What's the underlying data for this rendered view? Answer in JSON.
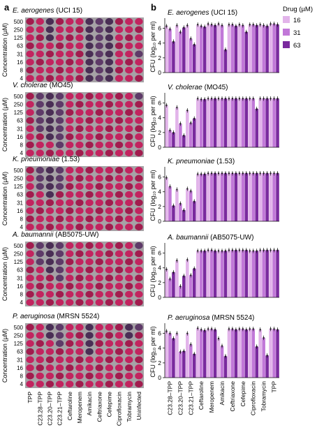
{
  "figure": {
    "panel_a_label": "a",
    "panel_b_label": "b"
  },
  "panel_a": {
    "ylabel": "Concentration (µM)",
    "row_labels": [
      "500",
      "250",
      "125",
      "63",
      "31",
      "16",
      "8",
      "4"
    ],
    "column_labels": [
      "TPP",
      "C23.28–TPP",
      "C23.20–TPP",
      "C23.21–TPP",
      "Ceftaroline",
      "Meropenem",
      "Amikacin",
      "Ceftriaxone",
      "Cefepime",
      "Ciprofloxacin",
      "Tobramycin",
      "Uninfected"
    ],
    "plates": [
      {
        "species": "E. aerogenes",
        "strain": "(UCI 15)",
        "pattern": [
          "PPMPPPMMMPPP",
          "PPMPPPMMMPPP",
          "PPMPPPMMMPPP",
          "PPPPPPMMMPPP",
          "PPPPPPMMMPPM",
          "PPPPPPMMMPPP",
          "PPPPPPMMMPPP",
          "PPPPPPMMMPPP"
        ]
      },
      {
        "species": "V. cholerae",
        "strain": "(MO45)",
        "pattern": [
          "PMMMPPPPPPPM",
          "PMMMPPPPPPPP",
          "PMMMPPPPPPPP",
          "PMMMPPPPPPPP",
          "PMMMPPPPPPPP",
          "PPMMPPPPPPPP",
          "PPPMPPPPPPPP",
          "PPPPPPPPPPPP"
        ]
      },
      {
        "species": "K. pneumoniae",
        "strain": "(1.53)",
        "pattern": [
          "PMMMPPPPPPPP",
          "PMMMPPPPPPPP",
          "PMMMPPPPPPPP",
          "PPMPPPPPPPPP",
          "PPPPPPPPPPPP",
          "PPPPPPPPPPPP",
          "PPPPPPPPPPPP",
          "PPPPPPPPPPPP"
        ]
      },
      {
        "species": "A. baumannii",
        "strain": "(AB5075-UW)",
        "pattern": [
          "PMMMPPPPPPPM",
          "PMMMPPPPPPPP",
          "PMMMPPPPPPPP",
          "PPMMPPPPPPPP",
          "PPPMPPPPPPPP",
          "PPPPPPPPPPPP",
          "PPPPPPPPPPPP",
          "PPPPPPPPPPPP"
        ]
      },
      {
        "species": "P. aeruginosa",
        "strain": "(MRSN 5524)",
        "pattern": [
          "PPMMPPMPPPMM",
          "PPMMPPMPPPMP",
          "PPPMPPMPPPPP",
          "PPPPPPMPPPPP",
          "PPPPPPPPPPPP",
          "PPPPPPPPPPPP",
          "PPPPPPPPPPPP",
          "PPPPPPPPPPPP"
        ]
      }
    ],
    "colors": {
      "background": "#a6a2a6",
      "pink": "#c2245f",
      "pink_dark": "#a21c4e",
      "purple": "#5e3a68",
      "purple_dark": "#4a2e55"
    }
  },
  "chart_data": {
    "type": "bar",
    "ylabel": "CFU (log₁₀ per ml)",
    "ylim": [
      0,
      7
    ],
    "yticks": [
      0,
      2,
      4,
      6
    ],
    "categories": [
      "C23.28–TPP",
      "C23.20–TPP",
      "C23.21–TPP",
      "Ceftaroline",
      "Meropenem",
      "Amikacin",
      "Ceftriaxone",
      "Cefepime",
      "Ciprofloxacin",
      "Tobramycin",
      "TPP"
    ],
    "legend": {
      "title": "Drug (µM)",
      "placement": "top-right",
      "entries": [
        "16",
        "31",
        "63"
      ],
      "colors": [
        "#e2b4ea",
        "#c178d8",
        "#7a2a9e"
      ]
    },
    "panels": [
      {
        "species": "E. aerogenes",
        "strain": "(UCI 15)",
        "series": [
          {
            "values": [
              6.3,
              6.4,
              6.4,
              6.5,
              6.6,
              6.6,
              6.5,
              6.5,
              6.5,
              6.5,
              6.6
            ]
          },
          {
            "values": [
              5.9,
              5.5,
              4.6,
              6.3,
              6.5,
              6.4,
              6.5,
              6.4,
              6.5,
              6.4,
              6.6
            ]
          },
          {
            "values": [
              4.2,
              6.1,
              3.8,
              6.2,
              6.4,
              3.1,
              6.3,
              5.5,
              6.4,
              6.3,
              6.5
            ]
          }
        ]
      },
      {
        "species": "V. cholerae",
        "strain": "(MO45)",
        "series": [
          {
            "values": [
              5.7,
              5.4,
              5.0,
              6.6,
              6.6,
              6.6,
              6.6,
              6.6,
              6.6,
              6.6,
              6.6
            ]
          },
          {
            "values": [
              2.3,
              3.2,
              3.3,
              6.5,
              6.6,
              6.6,
              6.6,
              6.6,
              6.6,
              6.6,
              6.6
            ]
          },
          {
            "values": [
              2.0,
              1.6,
              3.9,
              6.5,
              6.6,
              6.6,
              6.6,
              6.6,
              5.2,
              6.6,
              6.6
            ]
          }
        ]
      },
      {
        "species": "K. pneumoniae",
        "strain": "(1.53)",
        "series": [
          {
            "values": [
              5.9,
              4.3,
              4.4,
              6.4,
              6.5,
              6.5,
              6.5,
              6.5,
              6.5,
              6.5,
              6.5
            ]
          },
          {
            "values": [
              4.7,
              2.4,
              4.1,
              6.4,
              6.5,
              6.5,
              6.5,
              6.5,
              6.5,
              6.5,
              6.5
            ]
          },
          {
            "values": [
              2.1,
              1.5,
              2.7,
              6.4,
              6.5,
              6.5,
              6.5,
              6.5,
              6.5,
              6.5,
              6.5
            ]
          }
        ]
      },
      {
        "species": "A. baumannii",
        "strain": "(AB5075-UW)",
        "series": [
          {
            "values": [
              3.8,
              5.0,
              5.1,
              6.3,
              6.4,
              6.3,
              6.4,
              6.4,
              6.3,
              6.4,
              6.4
            ]
          },
          {
            "values": [
              2.5,
              1.5,
              3.0,
              6.3,
              6.4,
              6.3,
              6.4,
              6.4,
              6.3,
              6.4,
              6.4
            ]
          },
          {
            "values": [
              3.4,
              2.9,
              3.9,
              6.3,
              6.3,
              6.3,
              6.4,
              6.4,
              6.3,
              6.4,
              6.4
            ]
          }
        ]
      },
      {
        "species": "P. aeruginosa",
        "strain": "(MRSN 5524)",
        "series": [
          {
            "values": [
              6.3,
              6.0,
              6.0,
              6.7,
              6.6,
              5.3,
              6.6,
              6.6,
              6.6,
              6.5,
              6.6
            ]
          },
          {
            "values": [
              6.0,
              3.5,
              4.5,
              6.5,
              6.6,
              4.3,
              6.6,
              6.6,
              6.6,
              5.4,
              6.6
            ]
          },
          {
            "values": [
              5.3,
              3.6,
              3.2,
              6.4,
              6.5,
              2.9,
              6.5,
              6.5,
              4.2,
              3.0,
              6.5
            ]
          }
        ]
      }
    ]
  }
}
